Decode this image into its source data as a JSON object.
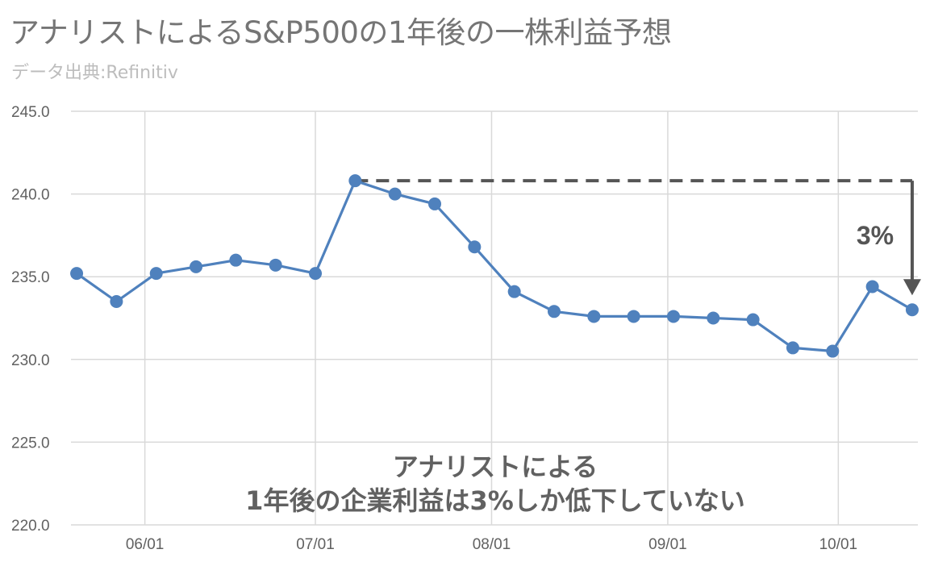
{
  "chart_data": {
    "type": "line",
    "title": "アナリストによるS&P500の1年後の一株利益予想",
    "subtitle": "データ出典:Refinitiv",
    "xlabel": "",
    "ylabel": "",
    "ylim": [
      220,
      245
    ],
    "yticks": [
      "220.0",
      "225.0",
      "230.0",
      "235.0",
      "240.0",
      "245.0"
    ],
    "x_ticks": [
      {
        "label": "06/01",
        "date": "2020-06-01"
      },
      {
        "label": "07/01",
        "date": "2020-07-01"
      },
      {
        "label": "08/01",
        "date": "2020-08-01"
      },
      {
        "label": "09/01",
        "date": "2020-09-01"
      },
      {
        "label": "10/01",
        "date": "2020-10-01"
      }
    ],
    "xlim": [
      "2020-05-19",
      "2020-10-15"
    ],
    "grid": true,
    "series": [
      {
        "color": "#4f81bd",
        "points": [
          {
            "x": "2020-05-20",
            "y": 235.2
          },
          {
            "x": "2020-05-27",
            "y": 233.5
          },
          {
            "x": "2020-06-03",
            "y": 235.2
          },
          {
            "x": "2020-06-10",
            "y": 235.6
          },
          {
            "x": "2020-06-17",
            "y": 236.0
          },
          {
            "x": "2020-06-24",
            "y": 235.7
          },
          {
            "x": "2020-07-01",
            "y": 235.2
          },
          {
            "x": "2020-07-08",
            "y": 240.8
          },
          {
            "x": "2020-07-15",
            "y": 240.0
          },
          {
            "x": "2020-07-22",
            "y": 239.4
          },
          {
            "x": "2020-07-29",
            "y": 236.8
          },
          {
            "x": "2020-08-05",
            "y": 234.1
          },
          {
            "x": "2020-08-12",
            "y": 232.9
          },
          {
            "x": "2020-08-19",
            "y": 232.6
          },
          {
            "x": "2020-08-26",
            "y": 232.6
          },
          {
            "x": "2020-09-02",
            "y": 232.6
          },
          {
            "x": "2020-09-09",
            "y": 232.5
          },
          {
            "x": "2020-09-16",
            "y": 232.4
          },
          {
            "x": "2020-09-23",
            "y": 230.7
          },
          {
            "x": "2020-09-30",
            "y": 230.5
          },
          {
            "x": "2020-10-07",
            "y": 234.4
          },
          {
            "x": "2020-10-14",
            "y": 233.0
          }
        ]
      }
    ],
    "annotations": {
      "percent_label": "3%",
      "dashed_line_y": 240.8,
      "line1": "アナリストによる",
      "line2": "1年後の企業利益は3%しか低下していない"
    }
  },
  "colors": {
    "line": "#4f81bd",
    "grid": "#d9d9d9",
    "annotation": "#555555"
  }
}
